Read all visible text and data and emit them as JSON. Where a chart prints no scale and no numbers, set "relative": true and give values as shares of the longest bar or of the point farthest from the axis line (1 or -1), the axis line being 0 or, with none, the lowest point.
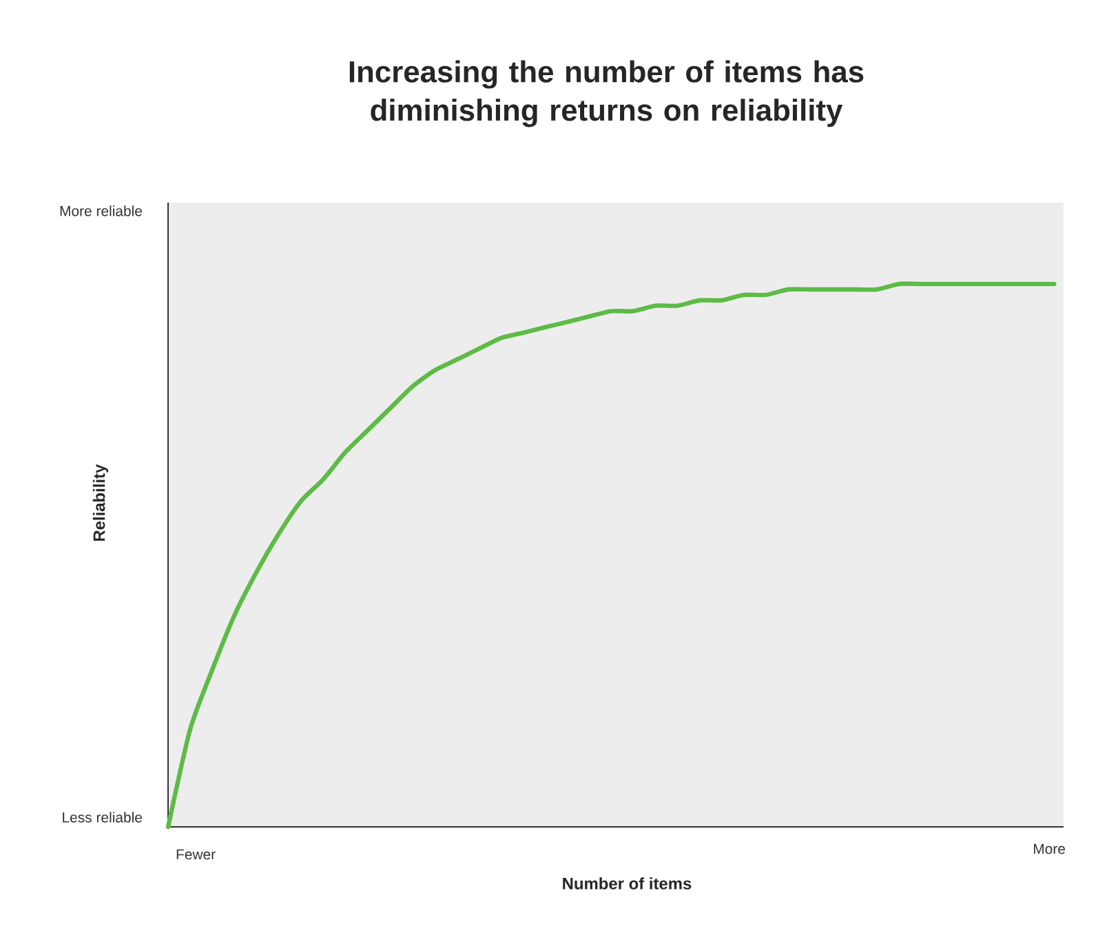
{
  "chart_data": {
    "type": "line",
    "title": "Increasing the number of items has diminishing returns on reliability",
    "xlabel": "Number of items",
    "ylabel": "Reliability",
    "relative": true,
    "annotations": [
      "More reliable",
      "Less reliable",
      "Fewer",
      "More"
    ],
    "categories": [
      null,
      null,
      null,
      null,
      null,
      null,
      null,
      null,
      null,
      null,
      null,
      null,
      null,
      null,
      null,
      null,
      null,
      null,
      null,
      null,
      null,
      null,
      null,
      null,
      null,
      null,
      null,
      null,
      null,
      null,
      null,
      null,
      null,
      null,
      null,
      null,
      null,
      null,
      null,
      null,
      null
    ],
    "series": [
      {
        "color": "#5dbb46",
        "values": [
          0,
          0.18,
          0.29,
          0.39,
          0.47,
          0.54,
          0.6,
          0.64,
          0.69,
          0.73,
          0.77,
          0.81,
          0.84,
          0.86,
          0.88,
          0.9,
          0.91,
          0.92,
          0.93,
          0.94,
          0.95,
          0.95,
          0.96,
          0.96,
          0.97,
          0.97,
          0.98,
          0.98,
          0.99,
          0.99,
          0.99,
          0.99,
          0.99,
          1,
          1,
          1,
          1,
          1,
          1,
          1,
          1
        ]
      }
    ],
    "marker": "none",
    "line_style": "solid"
  }
}
